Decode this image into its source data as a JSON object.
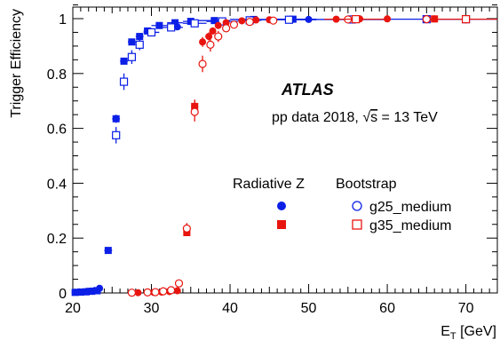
{
  "chart_data": {
    "type": "scatter",
    "xlabel": "E",
    "xlabel_sub": "T",
    "xlabel_unit": " [GeV]",
    "ylabel": "Trigger Efficiency",
    "xlim": [
      20,
      74
    ],
    "ylim": [
      0,
      1.05
    ],
    "x_ticks": [
      20,
      30,
      40,
      50,
      60,
      70
    ],
    "y_ticks": [
      0,
      0.2,
      0.4,
      0.6,
      0.8,
      1
    ],
    "x_tick_labels": [
      "20",
      "30",
      "40",
      "50",
      "60",
      "70"
    ],
    "y_tick_labels": [
      "0",
      "0.2",
      "0.4",
      "0.6",
      "0.8",
      "1"
    ],
    "grid": false,
    "colors": {
      "blue": "#0b1fe6",
      "red": "#e8150f"
    },
    "annotations": {
      "experiment": "ATLAS",
      "dataset_prefix": "pp data 2018, ",
      "sqrt_symbol": "√",
      "sqrt_arg": "s",
      "energy": " = 13 TeV"
    },
    "legend": {
      "placement": "center-right",
      "header_left": "Radiative Z",
      "header_right": "Bootstrap",
      "entries": [
        "g25_medium",
        "g35_medium"
      ]
    },
    "series": [
      {
        "name": "g25_medium Radiative Z",
        "color": "#0b1fe6",
        "marker": "circle-filled",
        "x": [
          20.3,
          20.8,
          21.3,
          21.8,
          22.3,
          22.8,
          23.4,
          33.3,
          50.0
        ],
        "y": [
          0.003,
          0.004,
          0.004,
          0.006,
          0.007,
          0.009,
          0.017,
          0.97,
          0.997
        ],
        "err": [
          0.004,
          0.004,
          0.004,
          0.005,
          0.005,
          0.005,
          0.006,
          0.01,
          0.004
        ]
      },
      {
        "name": "g25_medium Radiative Z (squares)",
        "color": "#0b1fe6",
        "marker": "square-filled",
        "x": [
          20.3,
          21.0,
          21.7,
          22.4,
          23.1,
          24.5,
          25.5,
          26.5,
          27.5,
          28.5,
          29.5,
          31.0,
          33.0,
          35.0,
          38.0,
          43.0,
          48.0
        ],
        "y": [
          0.002,
          0.003,
          0.004,
          0.006,
          0.008,
          0.155,
          0.635,
          0.845,
          0.915,
          0.935,
          0.955,
          0.975,
          0.985,
          0.99,
          0.993,
          0.997,
          0.998
        ],
        "err": [
          0.003,
          0.003,
          0.003,
          0.003,
          0.004,
          0.008,
          0.015,
          0.012,
          0.01,
          0.008,
          0.007,
          0.005,
          0.004,
          0.004,
          0.003,
          0.002,
          0.002
        ],
        "xerr": [
          0.3,
          0.3,
          0.3,
          0.3,
          0.3,
          0.5,
          0.5,
          0.5,
          0.5,
          0.5,
          0.5,
          1.0,
          1.0,
          1.0,
          2.0,
          3.0,
          3.0
        ]
      },
      {
        "name": "g25_medium Bootstrap",
        "color": "#0b1fe6",
        "marker": "square-open",
        "x": [
          25.5,
          26.5,
          27.5,
          28.5,
          30.0,
          32.5,
          35.5,
          39.0,
          42.5,
          47.5,
          55.5,
          65.0,
          70.0
        ],
        "y": [
          0.575,
          0.77,
          0.86,
          0.905,
          0.95,
          0.968,
          0.983,
          0.99,
          0.994,
          0.996,
          0.997,
          0.998,
          0.998
        ],
        "err": [
          0.03,
          0.03,
          0.025,
          0.02,
          0.015,
          0.012,
          0.008,
          0.006,
          0.005,
          0.004,
          0.003,
          0.003,
          0.003
        ],
        "xerr": [
          0.5,
          0.5,
          0.5,
          0.5,
          1.0,
          1.5,
          1.5,
          2.0,
          1.5,
          3.5,
          4.5,
          5.0,
          4.0
        ]
      },
      {
        "name": "g35_medium Radiative Z",
        "color": "#e8150f",
        "marker": "circle-filled",
        "x": [
          28.3,
          30.3,
          31.3,
          32.3,
          33.3,
          34.5,
          35.5,
          36.5,
          37.3,
          37.8,
          38.5,
          39.5,
          41.5,
          43.3,
          45.0,
          53.5,
          56.5,
          60.0,
          66.0
        ],
        "y": [
          0.001,
          0.002,
          0.003,
          0.005,
          0.008,
          0.22,
          0.68,
          0.915,
          0.935,
          0.955,
          0.975,
          0.985,
          0.992,
          0.995,
          0.996,
          0.998,
          0.999,
          0.999,
          0.999
        ],
        "err": [
          0.003,
          0.003,
          0.003,
          0.004,
          0.006,
          0.012,
          0.025,
          0.018,
          0.015,
          0.012,
          0.01,
          0.008,
          0.006,
          0.005,
          0.004,
          0.003,
          0.003,
          0.003,
          0.003
        ]
      },
      {
        "name": "g35_medium Radiative Z (squares)",
        "color": "#e8150f",
        "marker": "square-filled",
        "x": [
          34.5,
          35.5,
          66.0
        ],
        "y": [
          0.22,
          0.68,
          0.999
        ],
        "err": [
          0.01,
          0.02,
          0.003
        ]
      },
      {
        "name": "g35_medium Bootstrap",
        "color": "#e8150f",
        "marker": "circle-open",
        "x": [
          27.5,
          29.5,
          30.5,
          31.5,
          32.5,
          33.5,
          34.5,
          35.5,
          36.5,
          37.5,
          38.5,
          39.5,
          40.5,
          42.5,
          45.5,
          55.0,
          65.0,
          70.0
        ],
        "y": [
          0.001,
          0.002,
          0.003,
          0.006,
          0.01,
          0.035,
          0.235,
          0.66,
          0.835,
          0.905,
          0.935,
          0.965,
          0.978,
          0.988,
          0.993,
          0.997,
          0.998,
          0.998
        ],
        "err": [
          0.002,
          0.003,
          0.003,
          0.004,
          0.005,
          0.008,
          0.02,
          0.035,
          0.03,
          0.025,
          0.02,
          0.015,
          0.012,
          0.008,
          0.006,
          0.004,
          0.003,
          0.003
        ]
      },
      {
        "name": "g35_medium Bootstrap (squares)",
        "color": "#e8150f",
        "marker": "square-open",
        "x": [
          56.0,
          70.0
        ],
        "y": [
          0.998,
          0.998
        ],
        "err": [
          0.003,
          0.003
        ],
        "xerr": [
          4.0,
          4.0
        ]
      }
    ]
  }
}
